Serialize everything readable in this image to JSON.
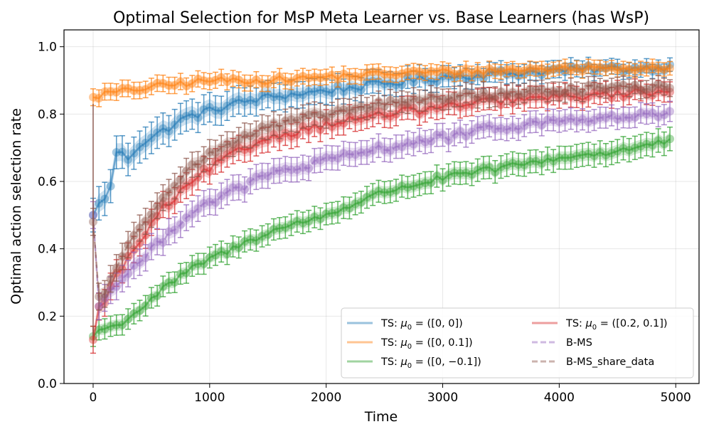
{
  "chart_data": {
    "type": "line",
    "title": "Optimal Selection for MsP Meta Learner vs. Base Learners (has WsP)",
    "xlabel": "Time",
    "ylabel": "Optimal action selection rate",
    "xlim": [
      -250,
      5200
    ],
    "ylim": [
      0.0,
      1.05
    ],
    "xticks": [
      0,
      1000,
      2000,
      3000,
      4000,
      5000
    ],
    "xtick_labels": [
      "0",
      "1000",
      "2000",
      "3000",
      "4000",
      "5000"
    ],
    "yticks": [
      0.0,
      0.2,
      0.4,
      0.6,
      0.8,
      1.0
    ],
    "ytick_labels": [
      "0.0",
      "0.2",
      "0.4",
      "0.6",
      "0.8",
      "1.0"
    ],
    "grid": true,
    "legend_position": "lower-right",
    "x_step": 50,
    "x_max": 4950,
    "series": [
      {
        "name_prefix": "TS: ",
        "name_math": "μ",
        "name_sub": "0",
        "name_suffix": " = ([0, 0])",
        "color": "#1f77b4",
        "style": "solid",
        "anchors": [
          [
            0,
            0.5
          ],
          [
            50,
            0.53
          ],
          [
            150,
            0.58
          ],
          [
            200,
            0.69
          ],
          [
            300,
            0.67
          ],
          [
            400,
            0.71
          ],
          [
            600,
            0.75
          ],
          [
            800,
            0.79
          ],
          [
            1000,
            0.81
          ],
          [
            1200,
            0.83
          ],
          [
            1500,
            0.85
          ],
          [
            2000,
            0.87
          ],
          [
            2500,
            0.89
          ],
          [
            3000,
            0.91
          ],
          [
            3500,
            0.92
          ],
          [
            4000,
            0.93
          ],
          [
            4500,
            0.935
          ],
          [
            4950,
            0.94
          ]
        ],
        "err_start": 0.05,
        "err_end": 0.02,
        "noise": 0.012
      },
      {
        "name_prefix": "TS: ",
        "name_math": "μ",
        "name_sub": "0",
        "name_suffix": " = ([0, 0.1])",
        "color": "#ff7f0e",
        "style": "solid",
        "anchors": [
          [
            0,
            0.85
          ],
          [
            100,
            0.86
          ],
          [
            500,
            0.88
          ],
          [
            1000,
            0.9
          ],
          [
            1500,
            0.9
          ],
          [
            2000,
            0.91
          ],
          [
            2500,
            0.92
          ],
          [
            3000,
            0.925
          ],
          [
            3500,
            0.93
          ],
          [
            4000,
            0.935
          ],
          [
            4950,
            0.94
          ]
        ],
        "err_start": 0.025,
        "err_end": 0.02,
        "noise": 0.01
      },
      {
        "name_prefix": "TS: ",
        "name_math": "μ",
        "name_sub": "0",
        "name_suffix": " = ([0, −0.1])",
        "color": "#2ca02c",
        "style": "solid",
        "anchors": [
          [
            0,
            0.14
          ],
          [
            50,
            0.16
          ],
          [
            200,
            0.17
          ],
          [
            400,
            0.22
          ],
          [
            600,
            0.28
          ],
          [
            800,
            0.33
          ],
          [
            1000,
            0.37
          ],
          [
            1200,
            0.4
          ],
          [
            1500,
            0.45
          ],
          [
            2000,
            0.5
          ],
          [
            2500,
            0.57
          ],
          [
            3000,
            0.61
          ],
          [
            3500,
            0.64
          ],
          [
            4000,
            0.67
          ],
          [
            4500,
            0.69
          ],
          [
            4950,
            0.72
          ]
        ],
        "err_start": 0.03,
        "err_end": 0.035,
        "noise": 0.01
      },
      {
        "name_prefix": "TS: ",
        "name_math": "μ",
        "name_sub": "0",
        "name_suffix": " = ([0.2, 0.1])",
        "color": "#d62728",
        "style": "solid",
        "anchors": [
          [
            0,
            0.13
          ],
          [
            50,
            0.22
          ],
          [
            100,
            0.25
          ],
          [
            200,
            0.32
          ],
          [
            400,
            0.42
          ],
          [
            600,
            0.52
          ],
          [
            800,
            0.58
          ],
          [
            1000,
            0.64
          ],
          [
            1200,
            0.68
          ],
          [
            1500,
            0.73
          ],
          [
            2000,
            0.77
          ],
          [
            2500,
            0.8
          ],
          [
            3000,
            0.82
          ],
          [
            3500,
            0.84
          ],
          [
            4000,
            0.85
          ],
          [
            4500,
            0.86
          ],
          [
            4950,
            0.87
          ]
        ],
        "err_start": 0.04,
        "err_end": 0.03,
        "noise": 0.012
      },
      {
        "name_prefix": "",
        "name_math": "",
        "name_sub": "",
        "name_suffix": "B-MS",
        "color": "#9467bd",
        "style": "dashed",
        "anchors": [
          [
            0,
            0.5
          ],
          [
            30,
            0.23
          ],
          [
            100,
            0.25
          ],
          [
            200,
            0.3
          ],
          [
            400,
            0.36
          ],
          [
            600,
            0.43
          ],
          [
            800,
            0.5
          ],
          [
            1000,
            0.54
          ],
          [
            1200,
            0.57
          ],
          [
            1500,
            0.62
          ],
          [
            2000,
            0.66
          ],
          [
            2500,
            0.7
          ],
          [
            3000,
            0.73
          ],
          [
            3500,
            0.76
          ],
          [
            4000,
            0.78
          ],
          [
            4500,
            0.79
          ],
          [
            4950,
            0.8
          ]
        ],
        "err_start": 0.04,
        "err_end": 0.03,
        "noise": 0.012
      },
      {
        "name_prefix": "",
        "name_math": "",
        "name_sub": "",
        "name_suffix": "B-MS_share_data",
        "color": "#8c564b",
        "style": "dashed",
        "anchors": [
          [
            0,
            0.48
          ],
          [
            30,
            0.25
          ],
          [
            100,
            0.27
          ],
          [
            200,
            0.35
          ],
          [
            400,
            0.46
          ],
          [
            600,
            0.56
          ],
          [
            800,
            0.63
          ],
          [
            1000,
            0.68
          ],
          [
            1200,
            0.72
          ],
          [
            1500,
            0.76
          ],
          [
            2000,
            0.8
          ],
          [
            2500,
            0.83
          ],
          [
            3000,
            0.85
          ],
          [
            3500,
            0.86
          ],
          [
            4000,
            0.87
          ],
          [
            4500,
            0.88
          ],
          [
            4950,
            0.88
          ]
        ],
        "err_start": 0.04,
        "err_end": 0.025,
        "noise": 0.01
      }
    ]
  }
}
